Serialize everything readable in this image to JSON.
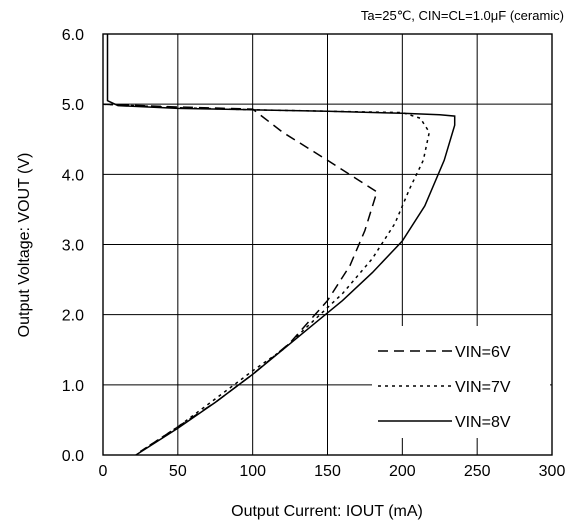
{
  "chart_data": {
    "type": "line",
    "title": "",
    "subtitle": "Ta=25℃, CIN=CL=1.0μF (ceramic)",
    "xlabel": "Output Current: IOUT (mA)",
    "ylabel": "Output Voltage: VOUT (V)",
    "xlim": [
      0,
      300
    ],
    "ylim": [
      0,
      6
    ],
    "x_ticks": [
      "0",
      "50",
      "100",
      "150",
      "200",
      "250",
      "300"
    ],
    "y_ticks": [
      "0.0",
      "1.0",
      "2.0",
      "3.0",
      "4.0",
      "5.0",
      "6.0"
    ],
    "grid": true,
    "legend_position": "bottom-right",
    "series": [
      {
        "name": "VIN=6V",
        "dash": "10,6",
        "points": [
          [
            0,
            5.0
          ],
          [
            50,
            4.96
          ],
          [
            100,
            4.93
          ],
          [
            120,
            4.6
          ],
          [
            150,
            4.2
          ],
          [
            183,
            3.75
          ],
          [
            175,
            3.2
          ],
          [
            165,
            2.7
          ],
          [
            150,
            2.2
          ],
          [
            125,
            1.6
          ],
          [
            100,
            1.15
          ],
          [
            75,
            0.75
          ],
          [
            50,
            0.4
          ],
          [
            25,
            0.05
          ]
        ]
      },
      {
        "name": "VIN=7V",
        "dash": "3,4",
        "points": [
          [
            0,
            5.0
          ],
          [
            50,
            4.95
          ],
          [
            100,
            4.92
          ],
          [
            150,
            4.9
          ],
          [
            200,
            4.88
          ],
          [
            212,
            4.8
          ],
          [
            218,
            4.6
          ],
          [
            214,
            4.2
          ],
          [
            205,
            3.8
          ],
          [
            195,
            3.3
          ],
          [
            180,
            2.8
          ],
          [
            160,
            2.3
          ],
          [
            140,
            1.9
          ],
          [
            120,
            1.5
          ],
          [
            100,
            1.2
          ],
          [
            75,
            0.8
          ],
          [
            50,
            0.4
          ],
          [
            25,
            0.05
          ]
        ]
      },
      {
        "name": "VIN=8V",
        "dash": "",
        "points": [
          [
            3,
            6.0
          ],
          [
            3,
            5.05
          ],
          [
            10,
            4.98
          ],
          [
            50,
            4.94
          ],
          [
            100,
            4.92
          ],
          [
            150,
            4.9
          ],
          [
            200,
            4.87
          ],
          [
            225,
            4.85
          ],
          [
            235,
            4.83
          ],
          [
            235,
            4.7
          ],
          [
            228,
            4.2
          ],
          [
            215,
            3.55
          ],
          [
            200,
            3.05
          ],
          [
            180,
            2.6
          ],
          [
            160,
            2.2
          ],
          [
            140,
            1.85
          ],
          [
            120,
            1.5
          ],
          [
            100,
            1.15
          ],
          [
            75,
            0.75
          ],
          [
            50,
            0.38
          ],
          [
            22,
            0.0
          ]
        ]
      }
    ]
  }
}
